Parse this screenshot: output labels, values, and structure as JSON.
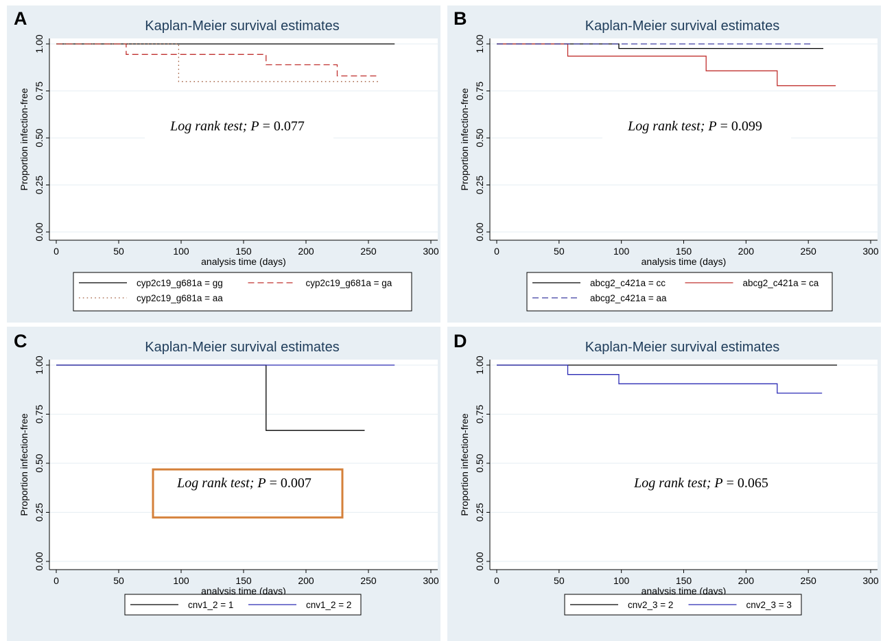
{
  "chart_data": [
    {
      "type": "line",
      "panel_letter": "A",
      "title": "Kaplan-Meier survival estimates",
      "ylabel": "Proportion infection-free",
      "xlabel": "analysis time (days)",
      "xlim": [
        0,
        300
      ],
      "ylim": [
        0,
        1
      ],
      "xticks": [
        "0",
        "50",
        "100",
        "150",
        "200",
        "250",
        "300"
      ],
      "yticks": [
        "0.00",
        "0.25",
        "0.50",
        "0.75",
        "1.00"
      ],
      "annotation": {
        "pre": "Log rank test; ",
        "p": "P",
        "post": " = 0.077"
      },
      "series": [
        {
          "name": "cyp2c19_g681a = gg",
          "color": "#000000",
          "dash": "solid",
          "x": [
            0,
            271
          ],
          "y": [
            1.0,
            1.0
          ]
        },
        {
          "name": "cyp2c19_g681a = ga",
          "color": "#c0302e",
          "dash": "dashed",
          "x": [
            0,
            56,
            56,
            168,
            168,
            225,
            225,
            258
          ],
          "y": [
            1.0,
            1.0,
            0.944,
            0.944,
            0.889,
            0.889,
            0.83,
            0.83
          ]
        },
        {
          "name": "cyp2c19_g681a = aa",
          "color": "#a05a3a",
          "dash": "dotted",
          "x": [
            0,
            98,
            98,
            258
          ],
          "y": [
            1.0,
            1.0,
            0.8,
            0.8
          ]
        }
      ]
    },
    {
      "type": "line",
      "panel_letter": "B",
      "title": "Kaplan-Meier survival estimates",
      "ylabel": "Proportion infection-free",
      "xlabel": "analysis time (days)",
      "xlim": [
        0,
        300
      ],
      "ylim": [
        0,
        1
      ],
      "xticks": [
        "0",
        "50",
        "100",
        "150",
        "200",
        "250",
        "300"
      ],
      "yticks": [
        "0.00",
        "0.25",
        "0.50",
        "0.75",
        "1.00"
      ],
      "annotation": {
        "pre": "Log rank test; ",
        "p": "P",
        "post": " = 0.099"
      },
      "series": [
        {
          "name": "abcg2_c421a = cc",
          "color": "#000000",
          "dash": "solid",
          "x": [
            0,
            98,
            98,
            262
          ],
          "y": [
            1.0,
            1.0,
            0.976,
            0.976
          ]
        },
        {
          "name": "abcg2_c421a = ca",
          "color": "#c0302e",
          "dash": "solid",
          "x": [
            0,
            57,
            57,
            168,
            168,
            225,
            225,
            272
          ],
          "y": [
            1.0,
            1.0,
            0.935,
            0.935,
            0.857,
            0.857,
            0.778,
            0.778
          ]
        },
        {
          "name": "abcg2_c421a = aa",
          "color": "#3c3ca0",
          "dash": "dashed",
          "x": [
            0,
            253
          ],
          "y": [
            1.0,
            1.0
          ]
        }
      ]
    },
    {
      "type": "line",
      "panel_letter": "C",
      "title": "Kaplan-Meier survival estimates",
      "ylabel": "Proportion infection-free",
      "xlabel": "analysis time (days)",
      "xlim": [
        0,
        300
      ],
      "ylim": [
        0,
        1
      ],
      "xticks": [
        "0",
        "50",
        "100",
        "150",
        "200",
        "250",
        "300"
      ],
      "yticks": [
        "0.00",
        "0.25",
        "0.50",
        "0.75",
        "1.00"
      ],
      "annotation": {
        "pre": "Log rank test; ",
        "p": "P",
        "post": " = 0.007",
        "boxed": true,
        "box_color": "#d4803a"
      },
      "series": [
        {
          "name": "cnv1_2 = 1",
          "color": "#000000",
          "dash": "solid",
          "x": [
            0,
            168,
            168,
            247
          ],
          "y": [
            1.0,
            1.0,
            0.667,
            0.667
          ]
        },
        {
          "name": "cnv1_2 = 2",
          "color": "#2a2ab4",
          "dash": "solid",
          "x": [
            0,
            271
          ],
          "y": [
            1.0,
            1.0
          ]
        }
      ]
    },
    {
      "type": "line",
      "panel_letter": "D",
      "title": "Kaplan-Meier survival estimates",
      "ylabel": "Proportion infection-free",
      "xlabel": "analysis time (days)",
      "xlim": [
        0,
        300
      ],
      "ylim": [
        0,
        1
      ],
      "xticks": [
        "0",
        "50",
        "100",
        "150",
        "200",
        "250",
        "300"
      ],
      "yticks": [
        "0.00",
        "0.25",
        "0.50",
        "0.75",
        "1.00"
      ],
      "annotation": {
        "pre": "Log rank test; ",
        "p": "P",
        "post": " = 0.065"
      },
      "series": [
        {
          "name": "cnv2_3 = 2",
          "color": "#000000",
          "dash": "solid",
          "x": [
            0,
            273
          ],
          "y": [
            1.0,
            1.0
          ]
        },
        {
          "name": "cnv2_3 = 3",
          "color": "#2a2ab4",
          "dash": "solid",
          "x": [
            0,
            57,
            57,
            98,
            98,
            225,
            225,
            261
          ],
          "y": [
            1.0,
            1.0,
            0.952,
            0.952,
            0.905,
            0.905,
            0.857,
            0.857
          ]
        }
      ]
    }
  ]
}
